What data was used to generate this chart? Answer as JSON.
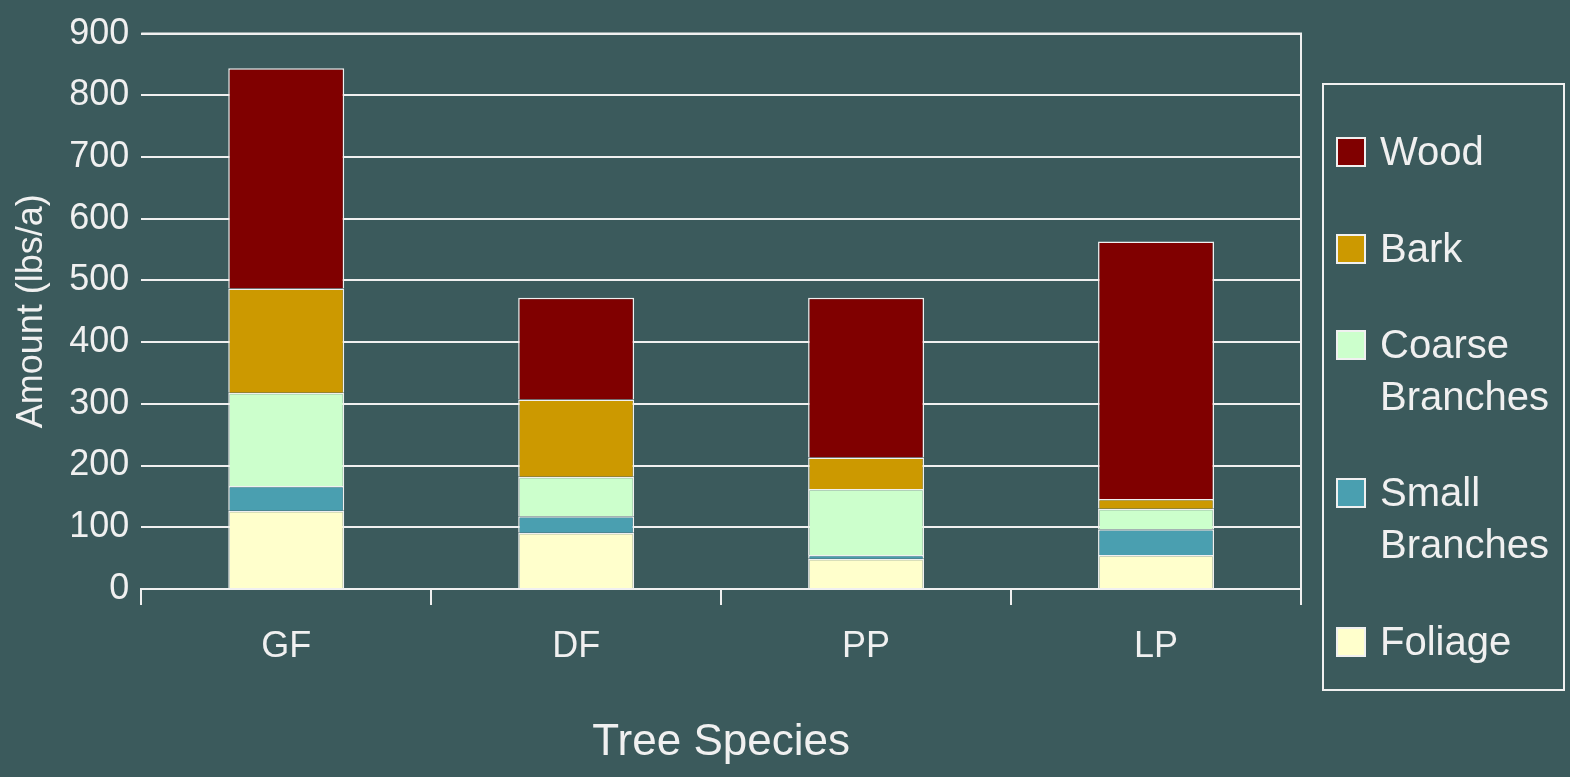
{
  "chart_data": {
    "type": "bar",
    "stacked": true,
    "xlabel": "Tree Species",
    "ylabel": "Amount (lbs/a)",
    "categories": [
      "GF",
      "DF",
      "PP",
      "LP"
    ],
    "series": [
      {
        "name": "Foliage",
        "color": "#ffffcc",
        "values": [
          127,
          91,
          49,
          55
        ]
      },
      {
        "name": "Small Branches",
        "color": "#4a9fb0",
        "values": [
          40,
          27,
          6,
          42
        ]
      },
      {
        "name": "Coarse Branches",
        "color": "#ccffcc",
        "values": [
          151,
          64,
          107,
          33
        ]
      },
      {
        "name": "Bark",
        "color": "#cc9900",
        "values": [
          169,
          125,
          51,
          16
        ]
      },
      {
        "name": "Wood",
        "color": "#800000",
        "values": [
          357,
          165,
          259,
          417
        ]
      }
    ],
    "ylim": [
      0,
      900
    ],
    "yticks": [
      0,
      100,
      200,
      300,
      400,
      500,
      600,
      700,
      800,
      900
    ],
    "grid": "y",
    "legend": "right"
  }
}
